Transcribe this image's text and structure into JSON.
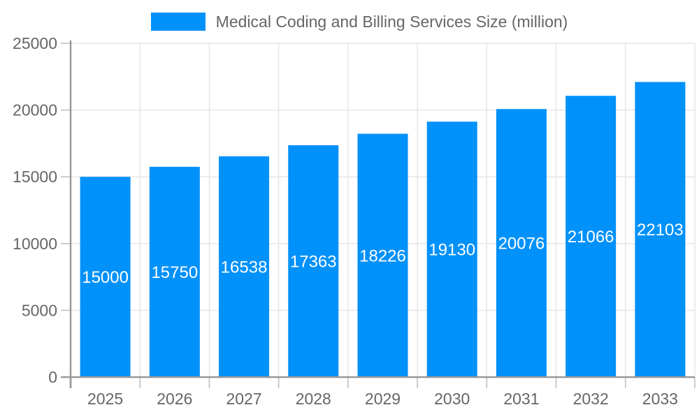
{
  "chart_data": {
    "type": "bar",
    "title": "Medical Coding and Billing Services Size (million)",
    "legend_position": "top",
    "categories": [
      "2025",
      "2026",
      "2027",
      "2028",
      "2029",
      "2030",
      "2031",
      "2032",
      "2033"
    ],
    "values": [
      15000,
      15750,
      16538,
      17363,
      18226,
      19130,
      20076,
      21066,
      22103
    ],
    "value_labels": [
      "15000",
      "15750",
      "16538",
      "17363",
      "18226",
      "19130",
      "20076",
      "21066",
      "22103"
    ],
    "series": [
      {
        "name": "Medical Coding and Billing Services Size (million)",
        "values": [
          15000,
          15750,
          16538,
          17363,
          18226,
          19130,
          20076,
          21066,
          22103
        ]
      }
    ],
    "xlabel": "",
    "ylabel": "",
    "ylim": [
      0,
      25000
    ],
    "ytick_step": 5000,
    "ytick_labels": [
      "0",
      "5000",
      "10000",
      "15000",
      "20000",
      "25000"
    ],
    "grid": true,
    "colors": {
      "bar": "#0091fa",
      "axis": "#999999",
      "grid": "#e6e6e6",
      "tick": "#bcbcbc",
      "text": "#666666",
      "bar_label": "#ffffff"
    }
  }
}
